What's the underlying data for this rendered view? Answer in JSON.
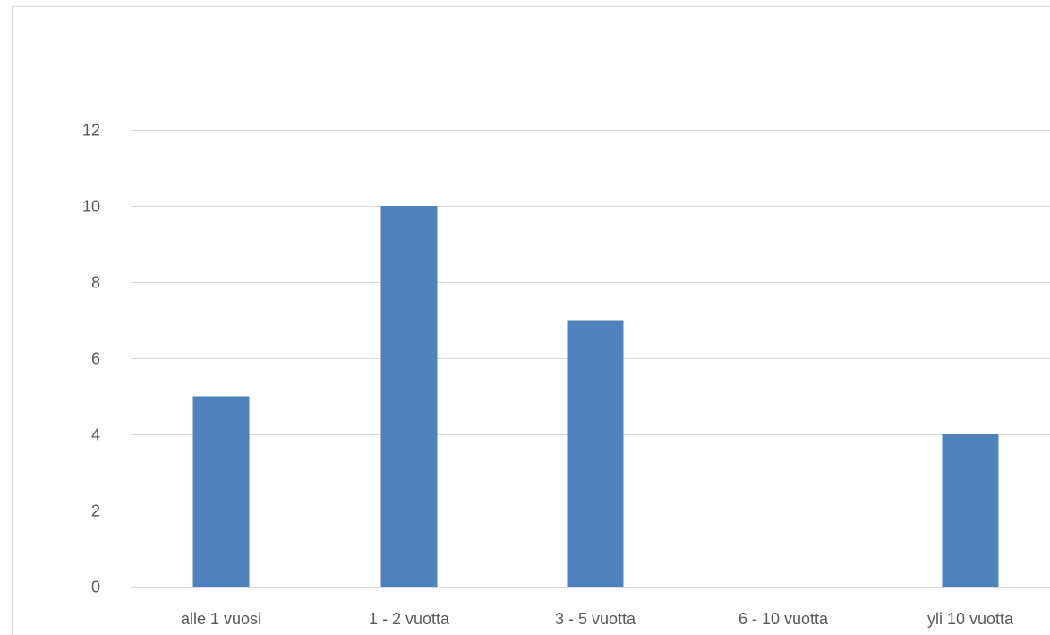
{
  "chart_data": {
    "type": "bar",
    "title": "",
    "xlabel": "",
    "ylabel": "",
    "categories": [
      "alle 1 vuosi",
      "1 - 2 vuotta",
      "3 - 5 vuotta",
      "6 - 10 vuotta",
      "yli 10 vuotta"
    ],
    "values": [
      5,
      10,
      7,
      0,
      4
    ],
    "ylim": [
      0,
      12
    ],
    "yticks": [
      0,
      2,
      4,
      6,
      8,
      10,
      12
    ],
    "grid": true,
    "legend": "none",
    "colors": {
      "bar": "#4f81bd",
      "grid": "#d9d9d9",
      "text": "#595959"
    }
  }
}
